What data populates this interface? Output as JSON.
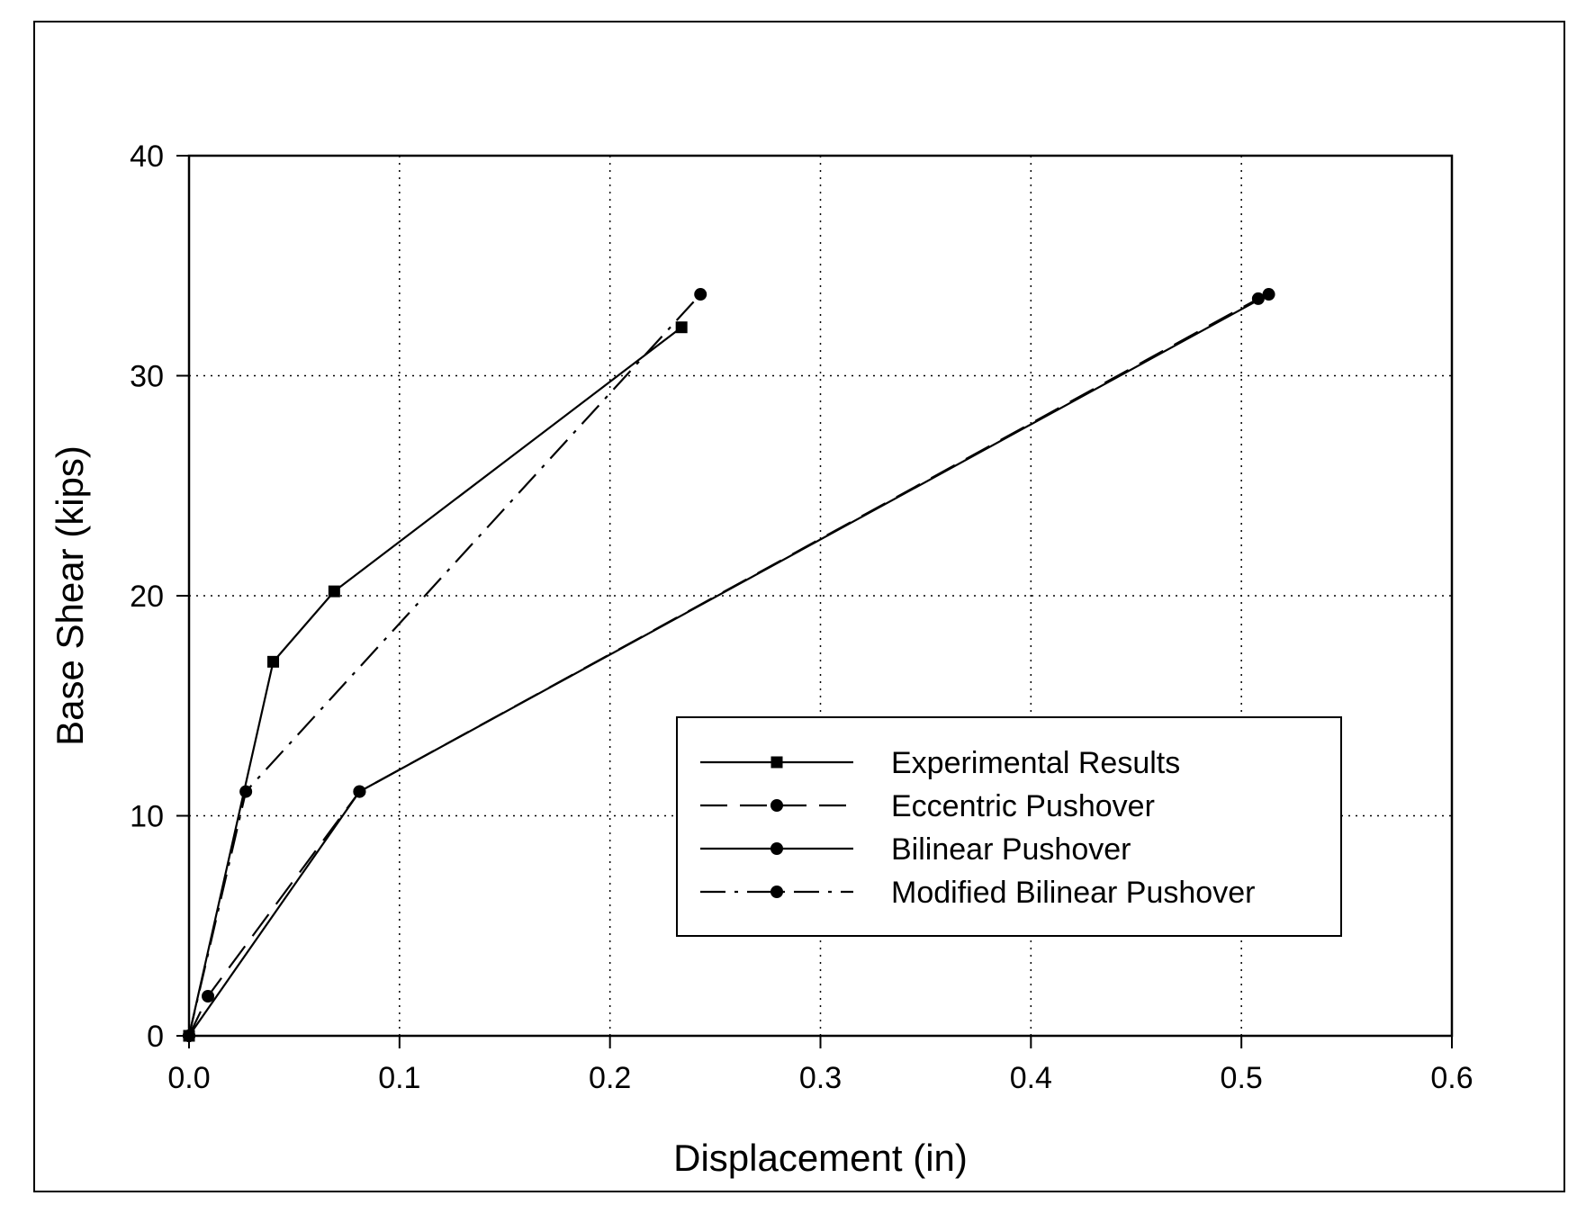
{
  "chart_data": {
    "type": "line",
    "title": "",
    "xlabel": "Displacement (in)",
    "ylabel": "Base Shear (kips)",
    "xlim": [
      0.0,
      0.6
    ],
    "ylim": [
      0,
      40
    ],
    "x_ticks": [
      "0.0",
      "0.1",
      "0.2",
      "0.3",
      "0.4",
      "0.5",
      "0.6"
    ],
    "y_ticks": [
      "0",
      "10",
      "20",
      "30",
      "40"
    ],
    "grid": "dotted major gridlines",
    "legend_position": "lower-right",
    "series": [
      {
        "name": "Experimental Results",
        "line_style": "solid",
        "marker": "square",
        "x": [
          0.0,
          0.04,
          0.069,
          0.234
        ],
        "y": [
          0.0,
          17.0,
          20.2,
          32.2
        ]
      },
      {
        "name": "Eccentric Pushover",
        "line_style": "dashed",
        "marker": "circle",
        "x": [
          0.0,
          0.009,
          0.081,
          0.508
        ],
        "y": [
          0.0,
          1.8,
          11.1,
          33.5
        ]
      },
      {
        "name": "Bilinear Pushover",
        "line_style": "solid",
        "marker": "circle",
        "x": [
          0.0,
          0.081,
          0.513
        ],
        "y": [
          0.0,
          11.1,
          33.7
        ]
      },
      {
        "name": "Modified Bilinear Pushover",
        "line_style": "dash-dot",
        "marker": "circle",
        "x": [
          0.0,
          0.027,
          0.243
        ],
        "y": [
          0.0,
          11.1,
          33.7
        ]
      }
    ]
  }
}
